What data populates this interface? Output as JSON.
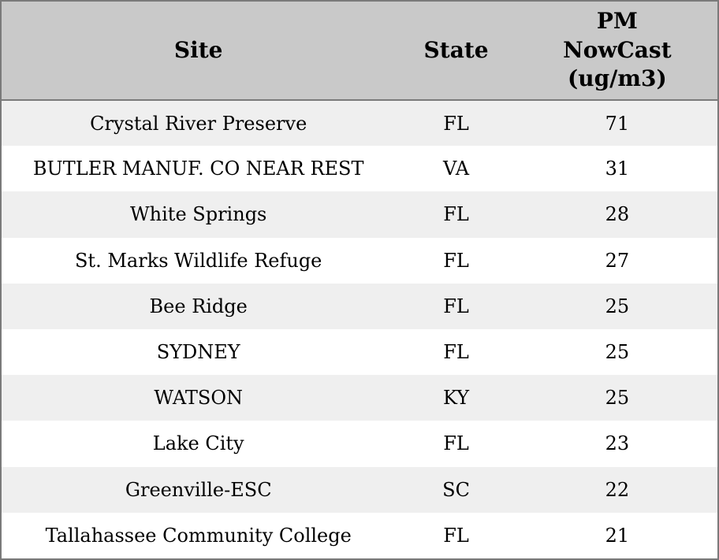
{
  "table": {
    "columns": [
      {
        "label": "Site"
      },
      {
        "label": "State"
      },
      {
        "label": "PM\nNowCast\n(ug/m3)"
      }
    ],
    "rows": [
      {
        "site": "Crystal River Preserve",
        "state": "FL",
        "pm": "71"
      },
      {
        "site": "BUTLER MANUF. CO NEAR REST",
        "state": "VA",
        "pm": "31"
      },
      {
        "site": "White Springs",
        "state": "FL",
        "pm": "28"
      },
      {
        "site": "St. Marks Wildlife Refuge",
        "state": "FL",
        "pm": "27"
      },
      {
        "site": "Bee Ridge",
        "state": "FL",
        "pm": "25"
      },
      {
        "site": "SYDNEY",
        "state": "FL",
        "pm": "25"
      },
      {
        "site": "WATSON",
        "state": "KY",
        "pm": "25"
      },
      {
        "site": "Lake City",
        "state": "FL",
        "pm": "23"
      },
      {
        "site": "Greenville-ESC",
        "state": "SC",
        "pm": "22"
      },
      {
        "site": "Tallahassee Community College",
        "state": "FL",
        "pm": "21"
      }
    ]
  },
  "colors": {
    "header_bg": "#c9c9c9",
    "row_alt_bg": "#efefef",
    "row_bg": "#ffffff",
    "border": "#7a7a7a",
    "text": "#000000"
  },
  "chart_data": {
    "type": "table",
    "title": "",
    "columns": [
      "Site",
      "State",
      "PM NowCast (ug/m3)"
    ],
    "rows": [
      [
        "Crystal River Preserve",
        "FL",
        71
      ],
      [
        "BUTLER MANUF. CO NEAR REST",
        "VA",
        31
      ],
      [
        "White Springs",
        "FL",
        28
      ],
      [
        "St. Marks Wildlife Refuge",
        "FL",
        27
      ],
      [
        "Bee Ridge",
        "FL",
        25
      ],
      [
        "SYDNEY",
        "FL",
        25
      ],
      [
        "WATSON",
        "KY",
        25
      ],
      [
        "Lake City",
        "FL",
        23
      ],
      [
        "Greenville-ESC",
        "SC",
        22
      ],
      [
        "Tallahassee Community College",
        "FL",
        21
      ]
    ]
  }
}
